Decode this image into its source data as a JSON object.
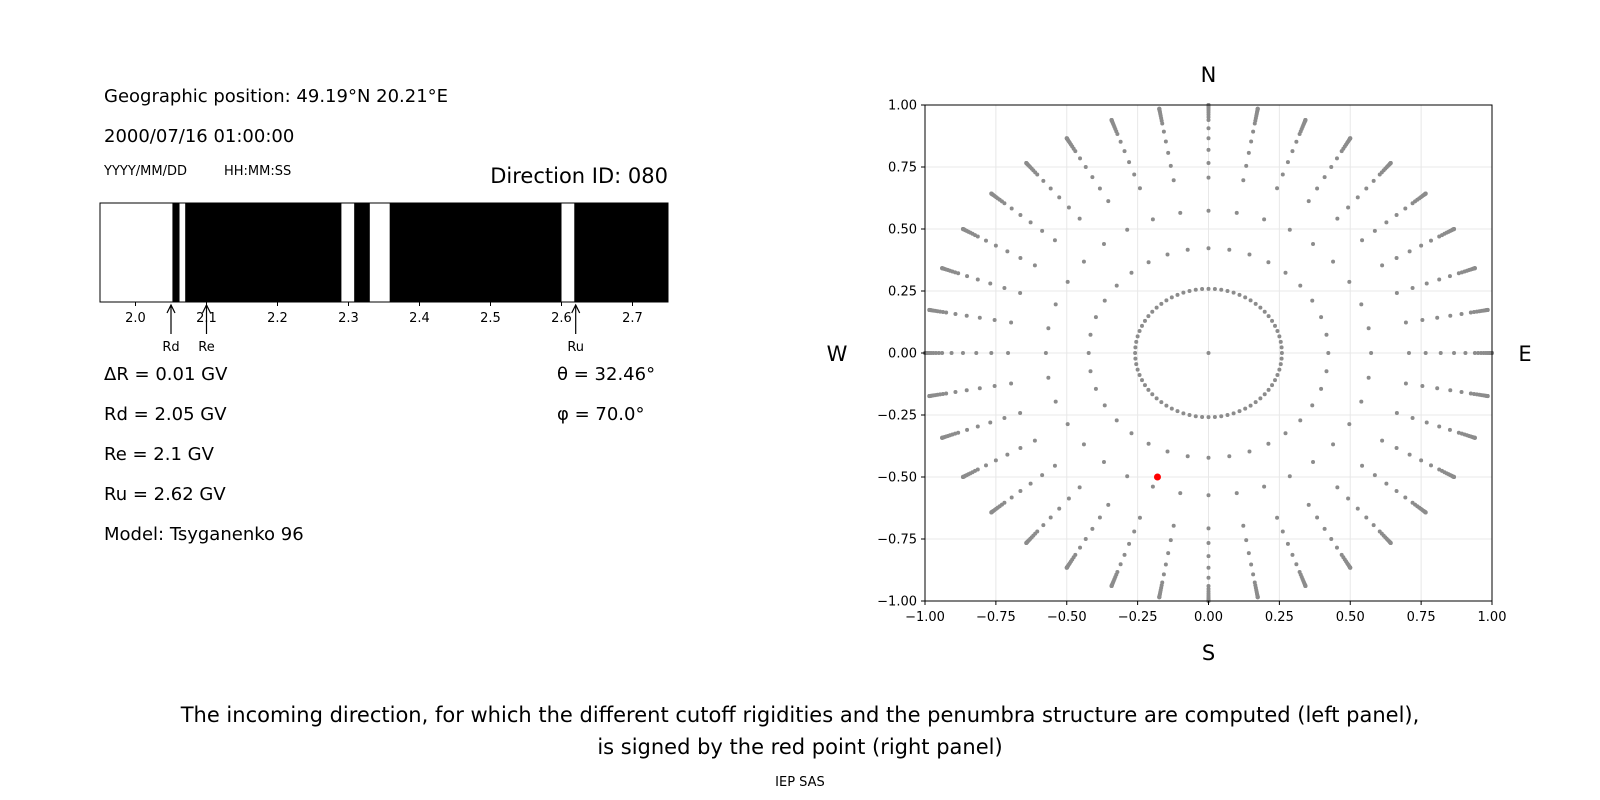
{
  "info": {
    "position": "Geographic position: 49.19°N 20.21°E",
    "datetime": "2000/07/16 01:00:00",
    "date_fmt": "YYYY/MM/DD",
    "time_fmt": "HH:MM:SS",
    "direction": "Direction ID: 080",
    "delta_r": "ΔR = 0.01 GV",
    "rd": "Rd = 2.05 GV",
    "re": "Re = 2.1 GV",
    "ru": "Ru = 2.62 GV",
    "model": "Model: Tsyganenko 96",
    "theta": "θ = 32.46°",
    "phi": "φ = 70.0°"
  },
  "caption": {
    "line1": "The incoming direction, for which the different cutoff rigidities and the penumbra structure are computed (left panel),",
    "line2": "is signed by the red point (right panel)",
    "credit": "IEP SAS"
  },
  "colors": {
    "allowed": "#ffffff",
    "forbidden": "#000000",
    "grid_point": "#8c8c8c",
    "selected_point": "#ff0000"
  },
  "chart_data": [
    {
      "type": "heatmap",
      "name": "penumbra structure",
      "xlim": [
        1.95,
        2.75
      ],
      "xticks": [
        2.0,
        2.1,
        2.2,
        2.3,
        2.4,
        2.5,
        2.6,
        2.7
      ],
      "tick_labels": [
        "2.0",
        "2.1",
        "2.2",
        "2.3",
        "2.4",
        "2.5",
        "2.6",
        "2.7"
      ],
      "allowed_bands": [
        [
          1.95,
          2.052
        ],
        [
          2.062,
          2.07
        ],
        [
          2.29,
          2.308
        ],
        [
          2.33,
          2.358
        ],
        [
          2.6,
          2.618
        ]
      ],
      "markers": [
        {
          "label": "Rd",
          "value": 2.05
        },
        {
          "label": "Re",
          "value": 2.1
        },
        {
          "label": "Ru",
          "value": 2.62
        }
      ]
    },
    {
      "type": "scatter",
      "name": "direction grid",
      "xlim": [
        -1.0,
        1.0
      ],
      "ylim": [
        -1.0,
        1.0
      ],
      "xticks": [
        -1.0,
        -0.75,
        -0.5,
        -0.25,
        0.0,
        0.25,
        0.5,
        0.75,
        1.0
      ],
      "yticks": [
        -1.0,
        -0.75,
        -0.5,
        -0.25,
        0.0,
        0.25,
        0.5,
        0.75,
        1.0
      ],
      "xtick_labels": [
        "−1.00",
        "−0.75",
        "−0.50",
        "−0.25",
        "0.00",
        "0.25",
        "0.50",
        "0.75",
        "1.00"
      ],
      "ytick_labels": [
        "−1.00",
        "−0.75",
        "−0.50",
        "−0.25",
        "0.00",
        "0.25",
        "0.50",
        "0.75",
        "1.00"
      ],
      "grid": true,
      "compass": {
        "top": "N",
        "bottom": "S",
        "left": "W",
        "right": "E"
      },
      "grid_rings": {
        "zenith_deg": [
          15,
          25,
          35,
          45,
          50,
          55,
          60,
          65,
          70,
          72,
          74,
          76,
          78,
          80,
          82,
          84,
          85,
          86,
          87,
          88,
          89,
          90
        ],
        "azimuth_step_deg": 10,
        "inner_ring": {
          "zenith_deg": 15,
          "azimuth_step_deg": 5
        },
        "include_center": true
      },
      "selected": {
        "x": -0.18,
        "y": -0.5,
        "theta": 32.46,
        "phi": 70.0
      }
    }
  ]
}
